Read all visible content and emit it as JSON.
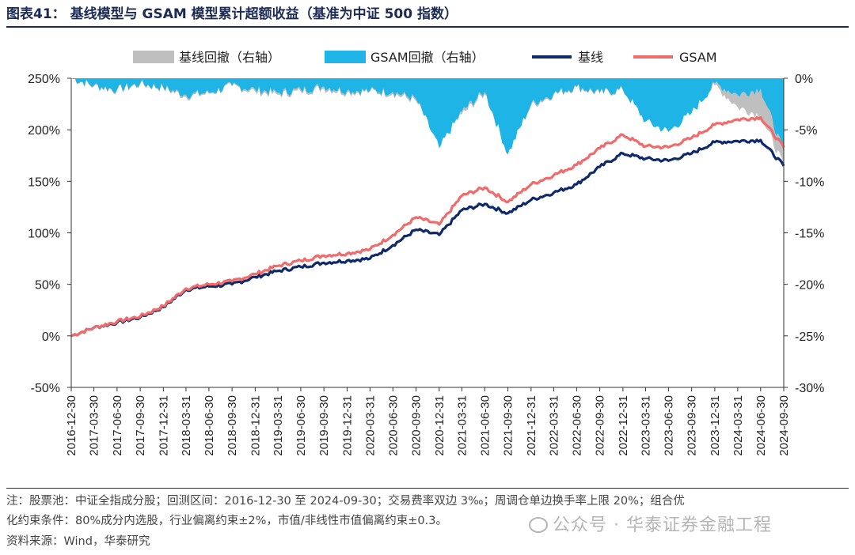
{
  "figure": {
    "title": "图表41：  基线模型与 GSAM 模型累计超额收益（基准为中证 500 指数）",
    "note_line1": "注：股票池：中证全指成分股；回测区间：2016-12-30 至 2024-09-30；交易费率双边 3‰；周调仓单边换手率上限 20%；组合优",
    "note_line2": "化约束条件：80%成分内选股，行业偏离约束±2%，市值/非线性市值偏离约束±0.3。",
    "source": "资料来源：Wind，华泰研究",
    "watermark": "公众号 · 华泰证券金融工程"
  },
  "chart_data": {
    "type": "line",
    "x_tick_labels": [
      "2016-12-30",
      "2017-03-30",
      "2017-06-30",
      "2017-09-30",
      "2017-12-31",
      "2018-03-31",
      "2018-06-30",
      "2018-09-30",
      "2018-12-31",
      "2019-03-31",
      "2019-06-30",
      "2019-09-30",
      "2019-12-31",
      "2020-03-31",
      "2020-06-30",
      "2020-09-30",
      "2020-12-31",
      "2021-03-31",
      "2021-06-30",
      "2021-09-30",
      "2021-12-31",
      "2022-03-31",
      "2022-06-30",
      "2022-09-30",
      "2022-12-31",
      "2023-03-31",
      "2023-06-30",
      "2023-09-30",
      "2023-12-31",
      "2024-03-31",
      "2024-06-30",
      "2024-09-30"
    ],
    "y_left": {
      "ylim": [
        -50,
        250
      ],
      "ticks": [
        "-50%",
        "0%",
        "50%",
        "100%",
        "150%",
        "200%",
        "250%"
      ]
    },
    "y_right": {
      "ylim": [
        -30,
        0
      ],
      "ticks": [
        "-30%",
        "-25%",
        "-20%",
        "-15%",
        "-10%",
        "-5%",
        "0%"
      ]
    },
    "legend": {
      "position": "top",
      "items": [
        {
          "label": "基线回撤（右轴）",
          "color": "#bfbfbf",
          "kind": "area"
        },
        {
          "label": "GSAM回撤（右轴）",
          "color": "#1eb4e6",
          "kind": "area"
        },
        {
          "label": "基线",
          "color": "#0f2a6b",
          "kind": "line"
        },
        {
          "label": "GSAM",
          "color": "#f06b6b",
          "kind": "line"
        }
      ]
    },
    "series": [
      {
        "name": "基线",
        "axis": "left",
        "color": "#0f2a6b",
        "x": [
          "2016-12-30",
          "2017-03-30",
          "2017-06-30",
          "2017-09-30",
          "2017-12-31",
          "2018-03-31",
          "2018-06-30",
          "2018-09-30",
          "2018-12-31",
          "2019-03-31",
          "2019-06-30",
          "2019-09-30",
          "2019-12-31",
          "2020-03-31",
          "2020-06-30",
          "2020-09-30",
          "2020-12-31",
          "2021-03-31",
          "2021-06-30",
          "2021-09-30",
          "2021-12-31",
          "2022-03-31",
          "2022-06-30",
          "2022-09-30",
          "2022-12-31",
          "2023-03-31",
          "2023-06-30",
          "2023-09-30",
          "2023-12-31",
          "2024-03-31",
          "2024-06-30",
          "2024-09-30"
        ],
        "values": [
          0,
          8,
          13,
          18,
          28,
          45,
          48,
          50,
          57,
          63,
          67,
          71,
          73,
          75,
          88,
          103,
          98,
          122,
          128,
          119,
          132,
          139,
          147,
          164,
          177,
          172,
          170,
          177,
          188,
          189,
          190,
          165
        ]
      },
      {
        "name": "GSAM",
        "axis": "left",
        "color": "#f06b6b",
        "x": [
          "2016-12-30",
          "2017-03-30",
          "2017-06-30",
          "2017-09-30",
          "2017-12-31",
          "2018-03-31",
          "2018-06-30",
          "2018-09-30",
          "2018-12-31",
          "2019-03-31",
          "2019-06-30",
          "2019-09-30",
          "2019-12-31",
          "2020-03-31",
          "2020-06-30",
          "2020-09-30",
          "2020-12-31",
          "2021-03-31",
          "2021-06-30",
          "2021-09-30",
          "2021-12-31",
          "2022-03-31",
          "2022-06-30",
          "2022-09-30",
          "2022-12-31",
          "2023-03-31",
          "2023-06-30",
          "2023-09-30",
          "2023-12-31",
          "2024-03-31",
          "2024-06-30",
          "2024-09-30"
        ],
        "values": [
          0,
          8,
          14,
          19,
          29,
          46,
          50,
          53,
          60,
          68,
          73,
          78,
          80,
          84,
          98,
          115,
          108,
          136,
          144,
          130,
          147,
          156,
          166,
          182,
          195,
          184,
          183,
          192,
          205,
          210,
          212,
          183
        ]
      },
      {
        "name": "基线回撤（右轴）",
        "axis": "right",
        "color": "#bfbfbf",
        "x": [
          "2016-12-30",
          "2017-03-30",
          "2017-06-30",
          "2017-09-30",
          "2017-12-31",
          "2018-03-31",
          "2018-06-30",
          "2018-09-30",
          "2018-12-31",
          "2019-03-31",
          "2019-06-30",
          "2019-09-30",
          "2019-12-31",
          "2020-03-31",
          "2020-06-30",
          "2020-09-30",
          "2020-12-31",
          "2021-03-31",
          "2021-06-30",
          "2021-09-30",
          "2021-12-31",
          "2022-03-31",
          "2022-06-30",
          "2022-09-30",
          "2022-12-31",
          "2023-03-31",
          "2023-06-30",
          "2023-09-30",
          "2023-12-31",
          "2024-03-31",
          "2024-06-30",
          "2024-09-30"
        ],
        "values": [
          0,
          -0.8,
          -1.2,
          -0.6,
          -1.0,
          -1.8,
          -1.5,
          -0.8,
          -1.3,
          -1.6,
          -1.3,
          -1.0,
          -1.4,
          -1.3,
          -1.5,
          -2.2,
          -6.2,
          -3.5,
          -1.5,
          -6.8,
          -2.7,
          -1.6,
          -0.9,
          -1.5,
          -1.2,
          -3.6,
          -4.8,
          -3.0,
          -0.7,
          -2.8,
          -3.6,
          -8.5
        ]
      },
      {
        "name": "GSAM回撤（右轴）",
        "axis": "right",
        "color": "#1eb4e6",
        "x": [
          "2016-12-30",
          "2017-03-30",
          "2017-06-30",
          "2017-09-30",
          "2017-12-31",
          "2018-03-31",
          "2018-06-30",
          "2018-09-30",
          "2018-12-31",
          "2019-03-31",
          "2019-06-30",
          "2019-09-30",
          "2019-12-31",
          "2020-03-31",
          "2020-06-30",
          "2020-09-30",
          "2020-12-31",
          "2021-03-31",
          "2021-06-30",
          "2021-09-30",
          "2021-12-31",
          "2022-03-31",
          "2022-06-30",
          "2022-09-30",
          "2022-12-31",
          "2023-03-31",
          "2023-06-30",
          "2023-09-30",
          "2023-12-31",
          "2024-03-31",
          "2024-06-30",
          "2024-09-30"
        ],
        "values": [
          0,
          -0.7,
          -1.1,
          -0.5,
          -0.9,
          -1.6,
          -1.4,
          -0.7,
          -1.1,
          -1.4,
          -1.1,
          -0.8,
          -1.2,
          -1.2,
          -1.3,
          -2.0,
          -6.8,
          -3.2,
          -1.3,
          -7.4,
          -2.5,
          -1.5,
          -0.8,
          -1.4,
          -1.1,
          -4.2,
          -5.2,
          -3.4,
          -0.5,
          -1.6,
          -1.0,
          -7.2
        ]
      }
    ]
  }
}
